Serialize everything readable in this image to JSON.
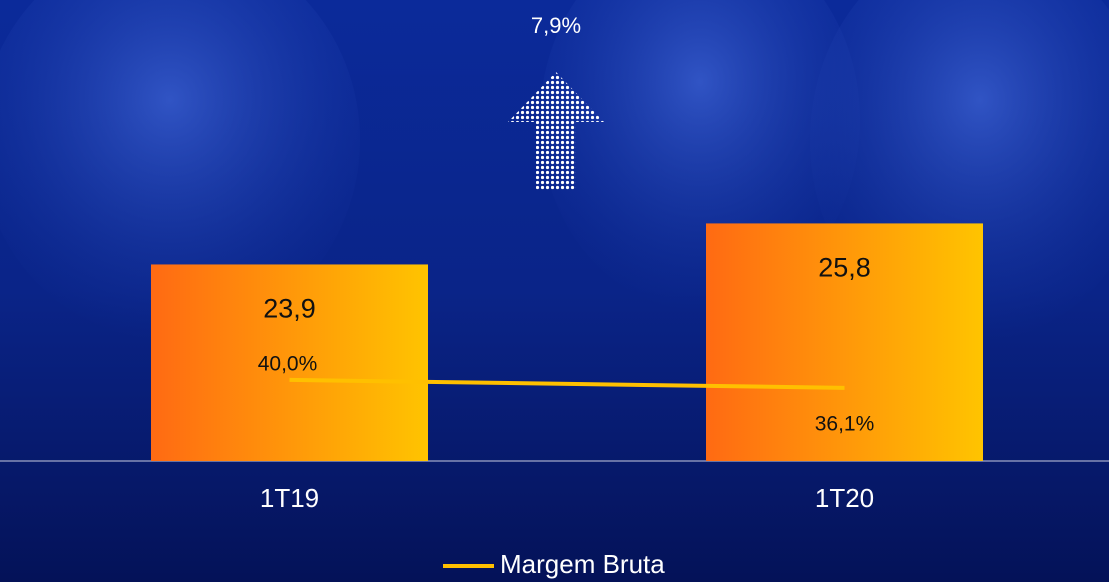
{
  "chart_data": {
    "type": "bar",
    "annotation": "7,9%",
    "categories": [
      "1T19",
      "1T20"
    ],
    "series": [
      {
        "type": "bar",
        "gradient": [
          "#ff6a13",
          "#ffc400"
        ],
        "values": [
          23.9,
          25.8
        ],
        "value_labels": [
          "23,9",
          "25,8"
        ]
      },
      {
        "type": "line",
        "name": "Margem Bruta",
        "color": "#ffc000",
        "axis": "y2",
        "values": [
          40.0,
          36.1
        ],
        "value_labels": [
          "40,0%",
          "36,1%"
        ]
      }
    ],
    "ylim": [
      14.8,
      27
    ],
    "y2lim": [
      0,
      130
    ],
    "legend": "bottom"
  }
}
